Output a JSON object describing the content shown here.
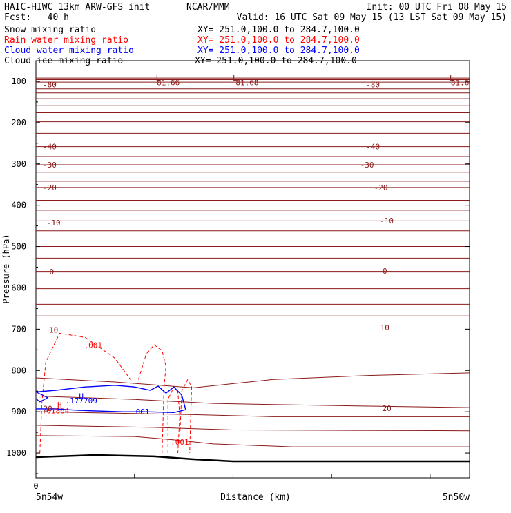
{
  "header": {
    "title_left": "HAIC-HIWC 13km ARW-GFS init",
    "title_center": "NCAR/MMM",
    "init": "Init: 00 UTC Fri 08 May 15",
    "fcst": "Fcst:   40 h",
    "valid": "Valid: 16 UTC Sat 09 May 15 (13 LST Sat 09 May 15)"
  },
  "fields": [
    {
      "name": "Snow mixing ratio",
      "xy": "XY= 251.0,100.0 to 284.7,100.0",
      "color": "#000000"
    },
    {
      "name": "Rain water mixing ratio",
      "xy": "XY= 251.0,100.0 to 284.7,100.0",
      "color": "#ff0000"
    },
    {
      "name": "Cloud water mixing ratio",
      "xy": "XY= 251.0,100.0 to 284.7,100.0",
      "color": "#0000ff"
    },
    {
      "name": "Cloud ice mixing ratio",
      "xy": "XY= 251.0,100.0 to 284.7,100.0",
      "color": "#000000"
    }
  ],
  "colors": {
    "temperature": "#8b1a1a",
    "rain": "#ff0000",
    "cloud_water": "#0000ff",
    "terrain": "#000000"
  },
  "chart_data": {
    "type": "cross-section",
    "ylabel": "Pressure (hPa)",
    "xlabel": "Distance (km)",
    "yticks": [
      100,
      200,
      300,
      400,
      500,
      600,
      700,
      800,
      900,
      1000
    ],
    "ylim": [
      1060,
      50
    ],
    "xlim": [
      0,
      220
    ],
    "xticks": [
      0
    ],
    "x_endpoints": {
      "left": "5n54w",
      "right": "5n50w"
    },
    "temperature_labels": [
      {
        "text": "-80",
        "x": 7,
        "p": 108
      },
      {
        "text": "-81.66",
        "x": 66,
        "p": 103
      },
      {
        "text": "-81.68",
        "x": 106,
        "p": 103
      },
      {
        "text": "-80",
        "x": 171,
        "p": 108
      },
      {
        "text": "-81.6",
        "x": 214,
        "p": 103
      },
      {
        "text": "-40",
        "x": 7,
        "p": 258
      },
      {
        "text": "-40",
        "x": 171,
        "p": 258
      },
      {
        "text": "-30",
        "x": 7,
        "p": 302
      },
      {
        "text": "-30",
        "x": 168,
        "p": 302
      },
      {
        "text": "-20",
        "x": 7,
        "p": 357
      },
      {
        "text": "-20",
        "x": 175,
        "p": 357
      },
      {
        "text": "-10",
        "x": 9,
        "p": 442
      },
      {
        "text": "-10",
        "x": 178,
        "p": 437
      },
      {
        "text": "0",
        "x": 8,
        "p": 561
      },
      {
        "text": "0",
        "x": 177,
        "p": 559
      },
      {
        "text": "10",
        "x": 9,
        "p": 702
      },
      {
        "text": "10",
        "x": 177,
        "p": 696
      },
      {
        "text": "20",
        "x": 178,
        "p": 891
      },
      {
        "text": "20",
        "x": 6,
        "p": 892
      }
    ],
    "extrema": [
      {
        "text": "L",
        "x": 62,
        "p": 92
      },
      {
        "text": "L",
        "x": 101,
        "p": 92
      },
      {
        "text": "L",
        "x": 211,
        "p": 92
      },
      {
        "text": "H",
        "x": 23,
        "p": 862
      },
      {
        "text": "H",
        "x": 12,
        "p": 883
      }
    ],
    "value_labels": [
      {
        "text": ".001",
        "x": 29,
        "p": 739,
        "field": "rain"
      },
      {
        "text": ".177709",
        "x": 23,
        "p": 873,
        "field": "cloud_water"
      },
      {
        "text": ".001",
        "x": 53,
        "p": 900,
        "field": "cloud_water"
      },
      {
        "text": ".01864",
        "x": 10,
        "p": 897,
        "field": "rain"
      },
      {
        "text": ".001",
        "x": 73,
        "p": 973,
        "field": "rain"
      }
    ]
  }
}
